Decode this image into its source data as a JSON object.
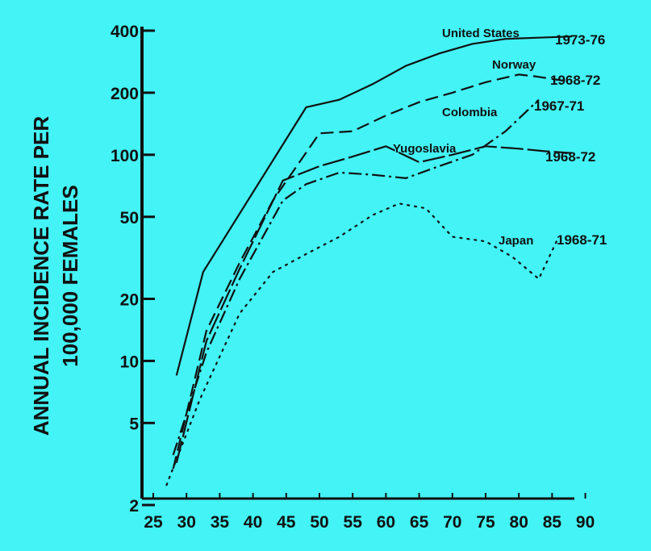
{
  "chart_data": {
    "type": "line",
    "title": "",
    "ylabel_line1": "ANNUAL INCIDENCE RATE PER",
    "ylabel_line2": "100,000 FEMALES",
    "xlabel": "",
    "y_scale": "log",
    "ylim": [
      2,
      400
    ],
    "xlim": [
      25,
      90
    ],
    "y_ticks": [
      2,
      5,
      10,
      20,
      50,
      100,
      200,
      400
    ],
    "x_ticks": [
      25,
      30,
      35,
      40,
      45,
      50,
      55,
      60,
      65,
      70,
      75,
      80,
      85,
      90
    ],
    "grid": false,
    "series": [
      {
        "name": "United States",
        "period": "1973-76",
        "style": "solid",
        "x": [
          28.5,
          32.5,
          48,
          53,
          58,
          63,
          68,
          73,
          78,
          83,
          88
        ],
        "y": [
          8.5,
          27,
          170,
          185,
          220,
          270,
          310,
          345,
          365,
          370,
          375
        ]
      },
      {
        "name": "Norway",
        "period": "1968-72",
        "style": "dashed",
        "x": [
          28,
          33,
          38,
          43,
          50,
          55,
          60,
          65,
          70,
          75,
          80,
          82.5,
          87
        ],
        "y": [
          3,
          14,
          30,
          60,
          127,
          130,
          155,
          180,
          200,
          225,
          245,
          240,
          228
        ]
      },
      {
        "name": "Colombia",
        "period": "1967-71",
        "style": "dashdot",
        "x": [
          28,
          33,
          38,
          44.5,
          48,
          53,
          58,
          63,
          68,
          73,
          78,
          83
        ],
        "y": [
          3.5,
          11,
          25,
          60,
          72,
          82,
          80,
          77,
          88,
          100,
          130,
          185
        ]
      },
      {
        "name": "Yugoslavia",
        "period": "1968-72",
        "style": "longdash",
        "x": [
          28.5,
          33,
          38,
          44.5,
          50,
          55,
          60,
          65,
          70,
          75,
          80,
          84,
          88
        ],
        "y": [
          3.2,
          12.5,
          28,
          75,
          88,
          98,
          110,
          92,
          100,
          110,
          107,
          104,
          102
        ]
      },
      {
        "name": "Japan",
        "period": "1968-71",
        "style": "dotted",
        "x": [
          27,
          32,
          38,
          43,
          48,
          53,
          58,
          62,
          66,
          70,
          75,
          79,
          83,
          86
        ],
        "y": [
          2.5,
          6.5,
          17,
          27,
          33,
          40,
          51,
          58,
          55,
          40,
          38,
          32,
          25,
          40
        ]
      }
    ]
  }
}
